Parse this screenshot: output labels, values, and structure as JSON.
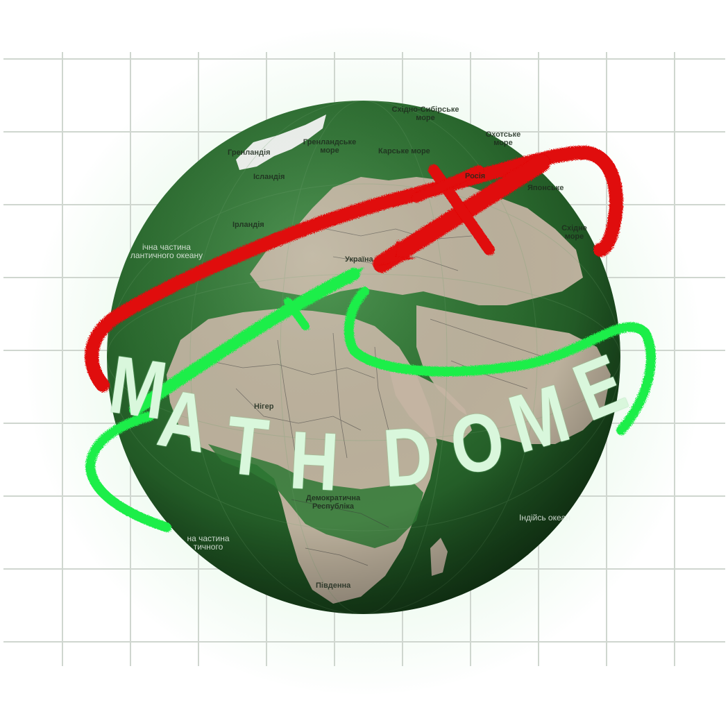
{
  "logo": {
    "title": "MATH DOME",
    "title_letters": [
      "M",
      "A",
      "T",
      "H",
      "D",
      "O",
      "M",
      "E"
    ],
    "colors": {
      "grid": "#cfd6cf",
      "globe_dark": "#1f5a25",
      "globe_mid": "#2f7a35",
      "land_tan": "#c9b7a6",
      "red_stroke": "#e00707",
      "green_stroke": "#1fee4a",
      "title_fill": "#d9f7dc"
    },
    "icons": [
      "globe-icon",
      "red-arrow-icon",
      "green-arrow-icon",
      "grid-background-icon"
    ]
  },
  "map_labels": [
    {
      "id": "east-siberian-sea",
      "text": "Східно-Сибірське море"
    },
    {
      "id": "greenland-sea",
      "text": "Гренландське море"
    },
    {
      "id": "kara-sea",
      "text": "Карське море"
    },
    {
      "id": "okhotsk-sea",
      "text": "Охотське море"
    },
    {
      "id": "russia",
      "text": "Росія"
    },
    {
      "id": "iceland",
      "text": "Ісландія"
    },
    {
      "id": "greenland",
      "text": "Гренландія"
    },
    {
      "id": "japan-sea",
      "text": "Японське"
    },
    {
      "id": "east-sea",
      "text": "Східне море"
    },
    {
      "id": "ireland",
      "text": "Ірландія"
    },
    {
      "id": "north-atlantic",
      "text": "ічна частина лантичного океану"
    },
    {
      "id": "ukraine",
      "text": "Україна"
    },
    {
      "id": "niger",
      "text": "Нігер"
    },
    {
      "id": "dr-congo",
      "text": "Демократична Республіка"
    },
    {
      "id": "south-atlantic",
      "text": "на частина тичного"
    },
    {
      "id": "indian-ocean",
      "text": "Індійсь океан"
    },
    {
      "id": "south-africa",
      "text": "Південна"
    }
  ]
}
